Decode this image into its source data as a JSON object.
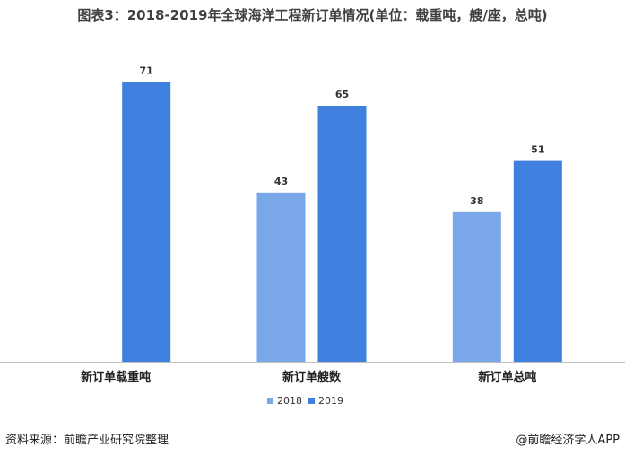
{
  "title": "图表3：2018-2019年全球海洋工程新订单情况(单位：载重吨，艘/座，总吨)",
  "chart_data": {
    "type": "bar",
    "categories": [
      "新订单载重吨",
      "新订单艘数",
      "新订单总吨"
    ],
    "series": [
      {
        "name": "2018",
        "values": [
          null,
          43,
          38
        ],
        "color": "#7aa7e8"
      },
      {
        "name": "2019",
        "values": [
          71,
          65,
          51
        ],
        "color": "#3f7fde"
      }
    ],
    "ylim": [
      0,
      80
    ],
    "grid": false,
    "legend_position": "bottom-center"
  },
  "footer": {
    "source": "资料来源：前瞻产业研究院整理",
    "brand": "@前瞻经济学人APP"
  }
}
